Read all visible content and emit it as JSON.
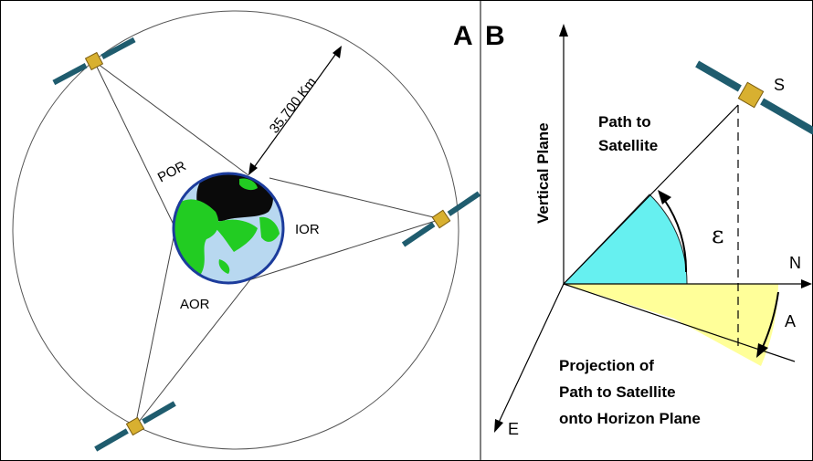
{
  "panel_a": {
    "letter": "A",
    "distance_label": "35.700 Km",
    "region_labels": [
      "POR",
      "IOR",
      "AOR"
    ]
  },
  "panel_b": {
    "letter": "B",
    "vertical_plane": "Vertical Plane",
    "satellite_label": "S",
    "path_label_1": "Path to",
    "path_label_2": "Satellite",
    "elevation_symbol": "ε",
    "north_label": "N",
    "azimuth_label": "A",
    "east_label": "E",
    "projection_lines": [
      "Projection of",
      "Path to Satellite",
      "onto Horizon Plane"
    ]
  },
  "colors": {
    "elevation_sector": "#66f0f0",
    "azimuth_sector": "#ffff99",
    "earth_ocean": "#b8d8f0",
    "earth_land": "#22cc22",
    "earth_rim": "#1c3c9c",
    "solar_panel": "#1f5c6e",
    "satellite_body": "#d8b030"
  }
}
